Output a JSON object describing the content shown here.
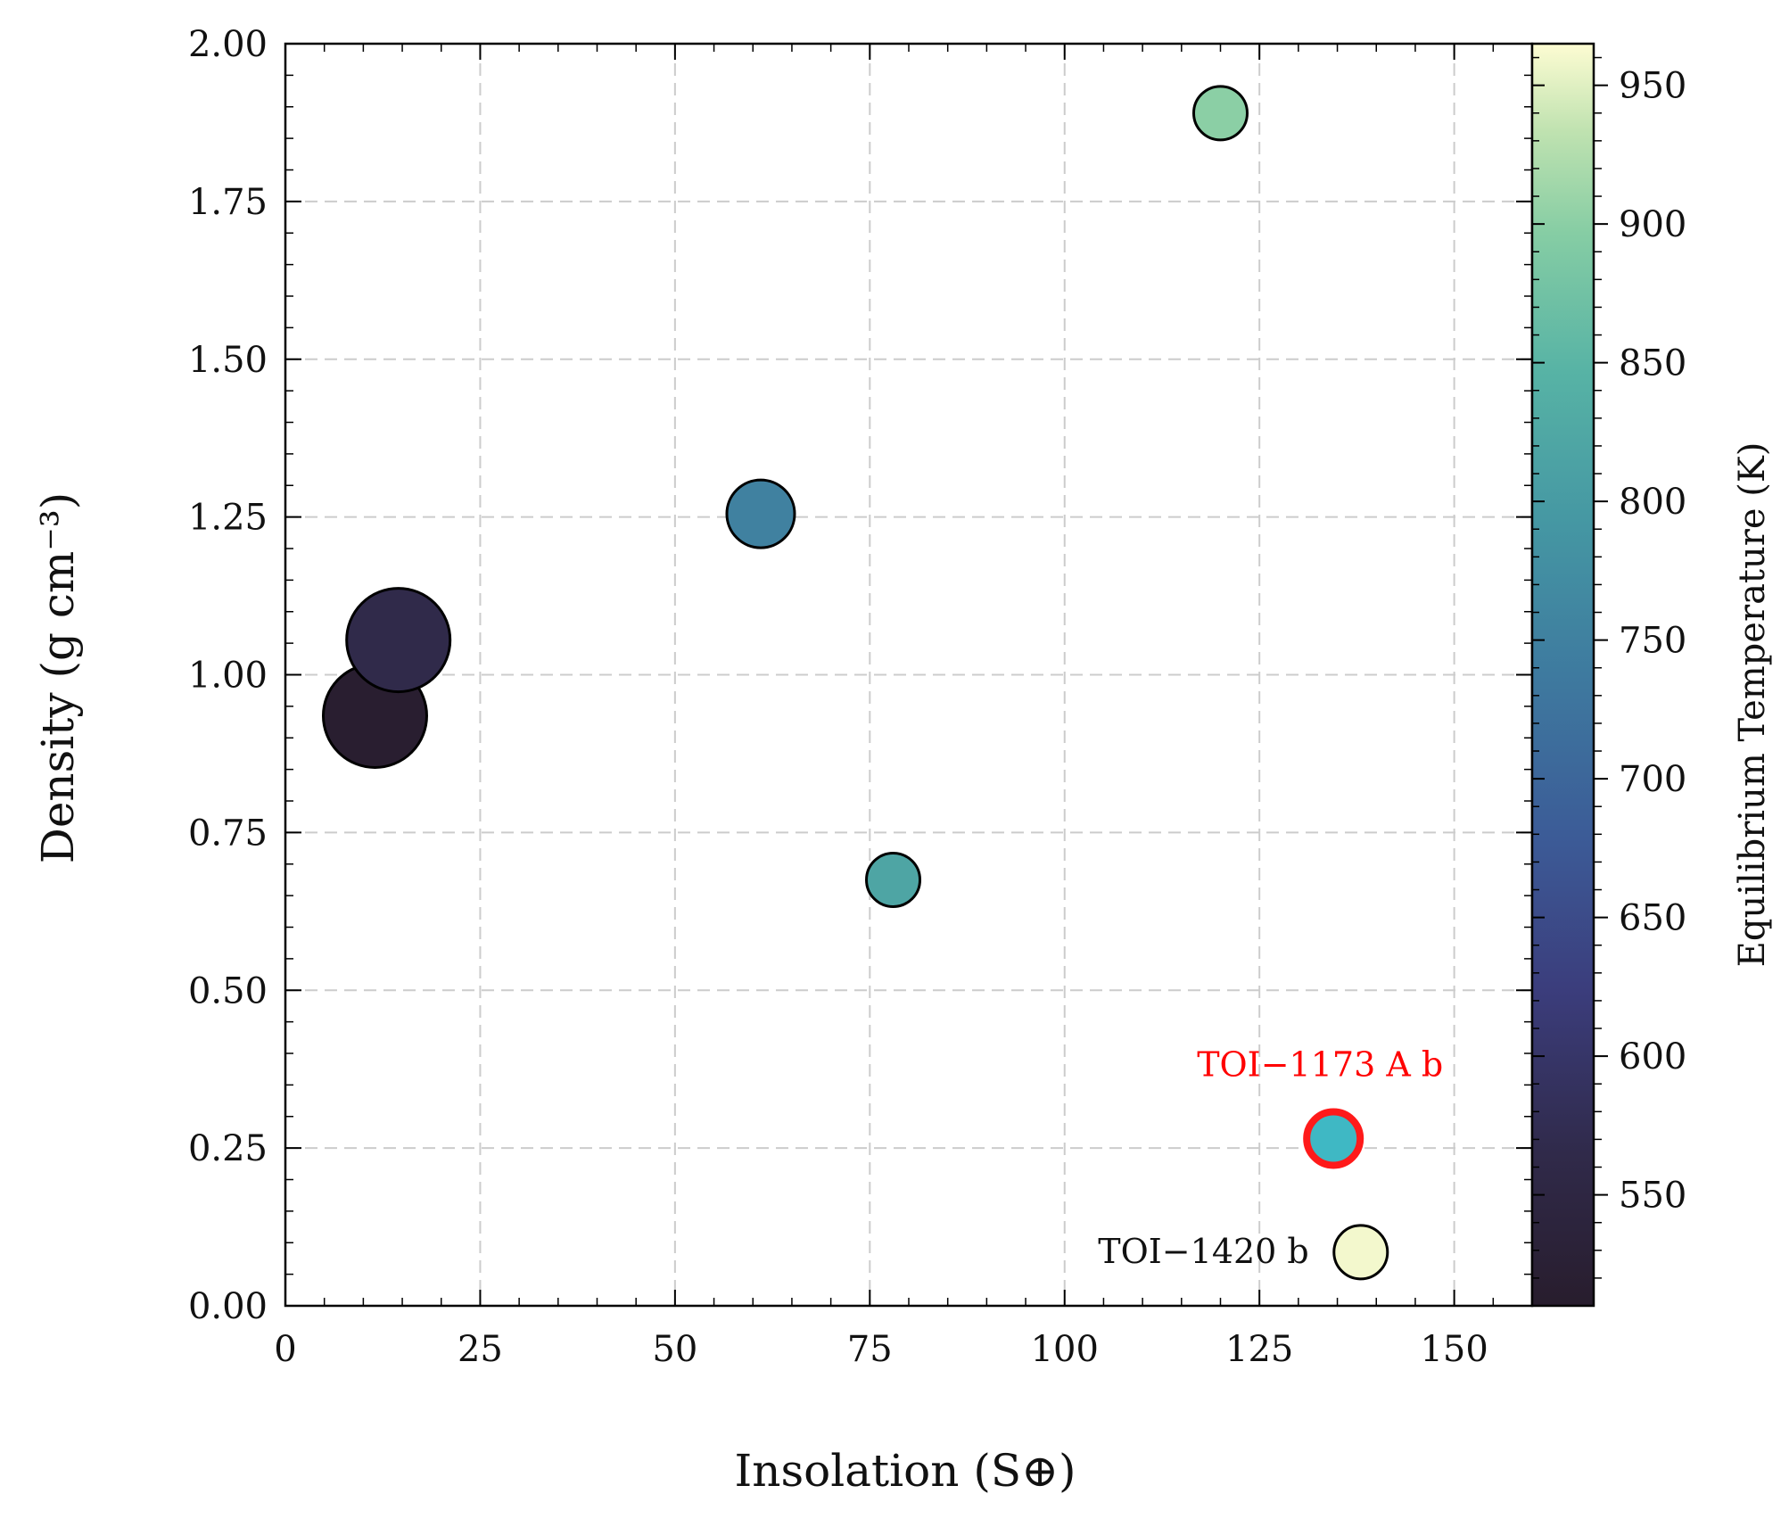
{
  "chart_data": {
    "type": "scatter",
    "xlabel": "Insolation (S⊕)",
    "ylabel": "Density (g cm⁻³)",
    "xlim": [
      0,
      160
    ],
    "ylim": [
      0,
      2.0
    ],
    "xticks": [
      "0",
      "25",
      "50",
      "75",
      "100",
      "125",
      "150"
    ],
    "yticks": [
      "0.00",
      "0.25",
      "0.50",
      "0.75",
      "1.00",
      "1.25",
      "1.50",
      "1.75",
      "2.00"
    ],
    "grid": true,
    "colorbar": {
      "label": "Equilibrium Temperature (K)",
      "range": [
        510,
        965
      ],
      "ticks": [
        "550",
        "600",
        "650",
        "700",
        "750",
        "800",
        "850",
        "900",
        "950"
      ]
    },
    "points": [
      {
        "x": 11.5,
        "y": 0.935,
        "teq": 515,
        "size": "large"
      },
      {
        "x": 14.5,
        "y": 1.055,
        "teq": 565,
        "size": "large"
      },
      {
        "x": 61.0,
        "y": 1.255,
        "teq": 750,
        "size": "medium"
      },
      {
        "x": 78.0,
        "y": 0.675,
        "teq": 820,
        "size": "small"
      },
      {
        "x": 120.0,
        "y": 1.89,
        "teq": 900,
        "size": "small"
      },
      {
        "x": 134.5,
        "y": 0.265,
        "teq": 710,
        "size": "small",
        "highlighted": true
      },
      {
        "x": 138.0,
        "y": 0.085,
        "teq": 960,
        "size": "small"
      }
    ],
    "annotations": [
      {
        "text": "TOI−1173 A b",
        "color": "#ff0000",
        "point": 5
      },
      {
        "text": "TOI−1420 b",
        "color": "#111111",
        "point": 6
      }
    ],
    "colors": {
      "highlight_ring": "#ff1a1a",
      "highlight_fill": "#3fb8c4",
      "grid": "#cccccc"
    }
  }
}
